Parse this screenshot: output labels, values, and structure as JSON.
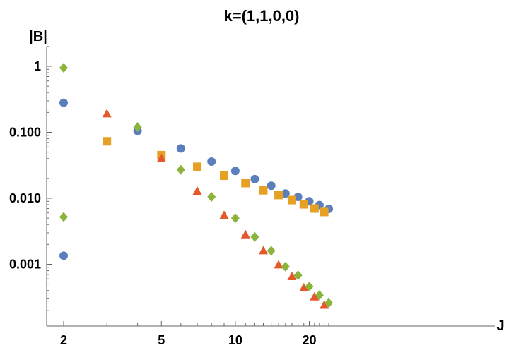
{
  "chart_data": {
    "type": "scatter",
    "title": "k=(1,1,0,0)",
    "xlabel": "J",
    "ylabel": "|B|",
    "xscale": "log",
    "yscale": "log",
    "xlim": [
      1.85,
      25
    ],
    "ylim": [
      0.0001,
      2.7
    ],
    "grid": false,
    "x_ticks": [
      {
        "value": 2,
        "label": "2"
      },
      {
        "value": 5,
        "label": "5"
      },
      {
        "value": 10,
        "label": "10"
      },
      {
        "value": 20,
        "label": "20"
      }
    ],
    "y_ticks": [
      {
        "value": 1,
        "label": "1"
      },
      {
        "value": 0.1,
        "label": "0.100"
      },
      {
        "value": 0.01,
        "label": "0.010"
      },
      {
        "value": 0.001,
        "label": "0.001"
      }
    ],
    "series": [
      {
        "marker": "circle",
        "color": "#5b7fbc",
        "points": [
          [
            2,
            0.28
          ],
          [
            2,
            0.00135
          ],
          [
            4,
            0.105
          ],
          [
            6,
            0.057
          ],
          [
            8,
            0.036
          ],
          [
            10,
            0.026
          ],
          [
            12,
            0.0195
          ],
          [
            14,
            0.0155
          ],
          [
            16,
            0.0118
          ],
          [
            18,
            0.0105
          ],
          [
            20,
            0.009
          ],
          [
            22,
            0.0079
          ],
          [
            24,
            0.0069
          ]
        ]
      },
      {
        "marker": "square",
        "color": "#e6a023",
        "points": [
          [
            3,
            0.073
          ],
          [
            5,
            0.045
          ],
          [
            7,
            0.03
          ],
          [
            9,
            0.022
          ],
          [
            11,
            0.017
          ],
          [
            13,
            0.0132
          ],
          [
            15,
            0.0112
          ],
          [
            17,
            0.0094
          ],
          [
            19,
            0.0081
          ],
          [
            21,
            0.007
          ],
          [
            23,
            0.0062
          ]
        ]
      },
      {
        "marker": "triangle",
        "color": "#e5582b",
        "points": [
          [
            3,
            0.19
          ],
          [
            5,
            0.04
          ],
          [
            7,
            0.0128
          ],
          [
            9,
            0.0055
          ],
          [
            11,
            0.0028
          ],
          [
            13,
            0.0016
          ],
          [
            15,
            0.00098
          ],
          [
            17,
            0.00065
          ],
          [
            19,
            0.00044
          ],
          [
            21,
            0.00032
          ],
          [
            23,
            0.00024
          ]
        ]
      },
      {
        "marker": "diamond",
        "color": "#8ab43a",
        "points": [
          [
            2,
            0.95
          ],
          [
            2,
            0.0052
          ],
          [
            4,
            0.12
          ],
          [
            6,
            0.027
          ],
          [
            8,
            0.0105
          ],
          [
            10,
            0.005
          ],
          [
            12,
            0.0026
          ],
          [
            14,
            0.0016
          ],
          [
            16,
            0.00092
          ],
          [
            18,
            0.00068
          ],
          [
            20,
            0.00046
          ],
          [
            22,
            0.00034
          ],
          [
            24,
            0.00026
          ]
        ]
      }
    ]
  }
}
